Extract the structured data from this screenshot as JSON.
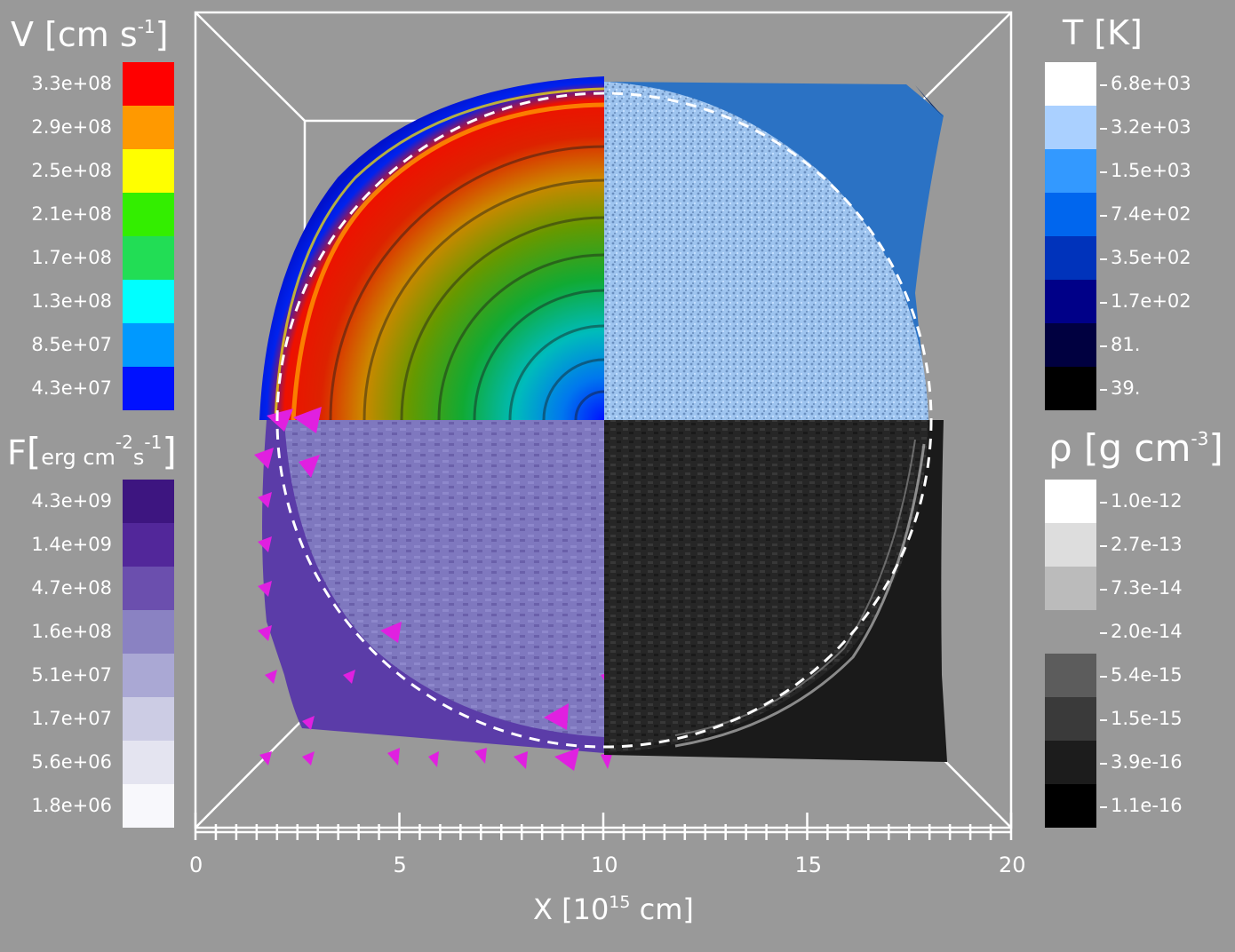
{
  "legends": {
    "velocity": {
      "title_pre": "V [cm s",
      "title_sup": "-1",
      "title_post": "]",
      "colors": [
        "#ff0000",
        "#ff9900",
        "#ffff00",
        "#33ee00",
        "#22dd55",
        "#00ffff",
        "#0099ff",
        "#0011ff"
      ],
      "labels": [
        "3.3e+08",
        "2.9e+08",
        "2.5e+08",
        "2.1e+08",
        "1.7e+08",
        "1.3e+08",
        "8.5e+07",
        "4.3e+07"
      ]
    },
    "temperature": {
      "title": "T [K]",
      "colors": [
        "#ffffff",
        "#aad0ff",
        "#3399ff",
        "#0066ee",
        "#0033bb",
        "#000088",
        "#000040",
        "#000000"
      ],
      "labels": [
        "6.8e+03",
        "3.2e+03",
        "1.5e+03",
        "7.4e+02",
        "3.5e+02",
        "1.7e+02",
        "81.",
        "39."
      ]
    },
    "flux": {
      "title_pre": "F [",
      "title_unit": "erg cm",
      "title_sup1": "-2",
      "title_mid": "s",
      "title_sup2": "-1",
      "title_post": "]",
      "colors": [
        "#3d1580",
        "#52279a",
        "#6b4fae",
        "#8a82c2",
        "#aaa8d4",
        "#cccce4",
        "#e4e4f0",
        "#f8f8fc"
      ],
      "labels": [
        "4.3e+09",
        "1.4e+09",
        "4.7e+08",
        "1.6e+08",
        "5.1e+07",
        "1.7e+07",
        "5.6e+06",
        "1.8e+06"
      ]
    },
    "density": {
      "title_pre": "ρ [g cm",
      "title_sup": "-3",
      "title_post": "]",
      "colors": [
        "#ffffff",
        "#dddddd",
        "#bbbbbb",
        "#999999",
        "#5c5c5c",
        "#3a3a3a",
        "#1c1c1c",
        "#000000"
      ],
      "labels": [
        "1.0e-12",
        "2.7e-13",
        "7.3e-14",
        "2.0e-14",
        "5.4e-15",
        "1.5e-15",
        "3.9e-16",
        "1.1e-16"
      ]
    }
  },
  "axis": {
    "xlabel_pre": "X [10",
    "xlabel_sup": "15",
    "xlabel_post": " cm]",
    "ticks": [
      "0",
      "5",
      "10",
      "15",
      "20"
    ]
  }
}
